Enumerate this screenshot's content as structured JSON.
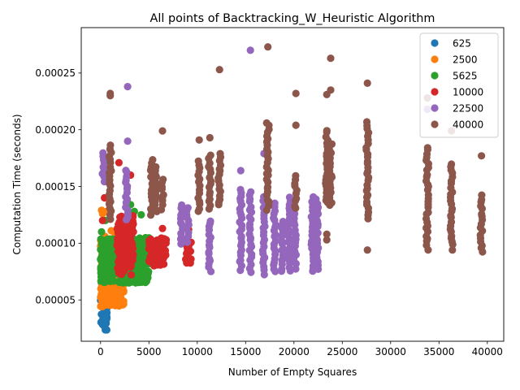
{
  "chart_data": {
    "type": "scatter",
    "title": "All points of Backtracking_W_Heuristic Algorithm",
    "xlabel": "Number of Empty Squares",
    "ylabel": "Computation Time (seconds)",
    "xlim": [
      -2000,
      41700
    ],
    "ylim": [
      1.36e-05,
      0.00029
    ],
    "xticks": [
      0,
      5000,
      10000,
      15000,
      20000,
      25000,
      30000,
      35000,
      40000
    ],
    "xtick_labels": [
      "0",
      "5000",
      "10000",
      "15000",
      "20000",
      "25000",
      "30000",
      "35000",
      "40000"
    ],
    "yticks": [
      5e-05,
      0.0001,
      0.00015,
      0.0002,
      0.00025
    ],
    "ytick_labels": [
      "0.00005",
      "0.00010",
      "0.00015",
      "0.00020",
      "0.00025"
    ],
    "grid": false,
    "legend_position": "top-right",
    "series": [
      {
        "name": "625",
        "color": "#1f77b4",
        "clusters": [
          {
            "x": [
              0,
              700
            ],
            "y": [
              2.2e-05,
              5.2e-05
            ]
          }
        ],
        "points": [
          {
            "x": 80,
            "y": 6.5e-05
          },
          {
            "x": 150,
            "y": 6.2e-05
          },
          {
            "x": 400,
            "y": 5.8e-05
          }
        ]
      },
      {
        "name": "2500",
        "color": "#ff7f0e",
        "clusters": [
          {
            "x": [
              0,
              2400
            ],
            "y": [
              4.4e-05,
              0.000108
            ]
          }
        ],
        "points": [
          {
            "x": 100,
            "y": 0.000129
          },
          {
            "x": 200,
            "y": 0.000126
          },
          {
            "x": 900,
            "y": 0.000137
          },
          {
            "x": 600,
            "y": 0.000128
          },
          {
            "x": 1100,
            "y": 0.000111
          }
        ]
      },
      {
        "name": "5625",
        "color": "#2ca02c",
        "clusters": [
          {
            "x": [
              0,
              5000
            ],
            "y": [
              6.5e-05,
              0.000105
            ]
          }
        ],
        "points": [
          {
            "x": 100,
            "y": 0.00011
          },
          {
            "x": 3100,
            "y": 0.000134
          },
          {
            "x": 3500,
            "y": 0.000128
          },
          {
            "x": 4200,
            "y": 0.000125
          },
          {
            "x": 2300,
            "y": 0.000113
          },
          {
            "x": 500,
            "y": 0.00012
          }
        ]
      },
      {
        "name": "10000",
        "color": "#d62728",
        "clusters": [
          {
            "x": [
              1700,
              3400
            ],
            "y": [
              7.2e-05,
              0.000125
            ]
          },
          {
            "x": [
              5000,
              6800
            ],
            "y": [
              8e-05,
              0.000105
            ]
          },
          {
            "x": [
              8800,
              9400
            ],
            "y": [
              8.2e-05,
              0.000103
            ]
          }
        ],
        "points": [
          {
            "x": 300,
            "y": 0.00016
          },
          {
            "x": 400,
            "y": 0.00014
          },
          {
            "x": 200,
            "y": 0.00012
          },
          {
            "x": 1900,
            "y": 0.000171
          },
          {
            "x": 3100,
            "y": 0.00016
          },
          {
            "x": 5200,
            "y": 0.000164
          },
          {
            "x": 6400,
            "y": 0.000113
          },
          {
            "x": 9100,
            "y": 0.000112
          }
        ]
      },
      {
        "name": "22500",
        "color": "#9467bd",
        "columns": [
          {
            "x": 300,
            "y": [
              0.000155,
              0.00018
            ]
          },
          {
            "x": 2700,
            "y": [
              0.00012,
              0.000165
            ]
          },
          {
            "x": 8400,
            "y": [
              0.0001,
              0.000134
            ]
          },
          {
            "x": 9000,
            "y": [
              0.0001,
              0.000132
            ]
          },
          {
            "x": 11300,
            "y": [
              7.5e-05,
              0.00012
            ]
          },
          {
            "x": 14500,
            "y": [
              7.7e-05,
              0.000148
            ]
          },
          {
            "x": 15500,
            "y": [
              7.5e-05,
              0.000145
            ]
          },
          {
            "x": 16900,
            "y": [
              7.3e-05,
              0.00014
            ]
          },
          {
            "x": 18000,
            "y": [
              7.5e-05,
              0.000135
            ]
          },
          {
            "x": 18800,
            "y": [
              7.5e-05,
              0.00012
            ]
          },
          {
            "x": 19500,
            "y": [
              7.6e-05,
              0.00014
            ]
          },
          {
            "x": 20100,
            "y": [
              7.8e-05,
              0.000125
            ]
          },
          {
            "x": 21900,
            "y": [
              7.5e-05,
              0.00014
            ]
          },
          {
            "x": 22400,
            "y": [
              7.8e-05,
              0.000138
            ]
          }
        ],
        "points": [
          {
            "x": 2800,
            "y": 0.000238
          },
          {
            "x": 2800,
            "y": 0.00019
          },
          {
            "x": 15500,
            "y": 0.00027
          },
          {
            "x": 16900,
            "y": 0.000179
          },
          {
            "x": 14500,
            "y": 0.000164
          },
          {
            "x": 33800,
            "y": 0.000218
          }
        ]
      },
      {
        "name": "40000",
        "color": "#8c564b",
        "columns": [
          {
            "x": 1000,
            "y": [
              0.000122,
              0.000186
            ]
          },
          {
            "x": 5300,
            "y": [
              0.000125,
              0.000174
            ]
          },
          {
            "x": 5700,
            "y": [
              0.000128,
              0.000168
            ]
          },
          {
            "x": 6400,
            "y": [
              0.00013,
              0.000157
            ]
          },
          {
            "x": 10200,
            "y": [
              0.000128,
              0.000172
            ]
          },
          {
            "x": 11300,
            "y": [
              0.00013,
              0.000177
            ]
          },
          {
            "x": 12300,
            "y": [
              0.000133,
              0.000178
            ]
          },
          {
            "x": 17300,
            "y": [
              0.00013,
              0.000206
            ]
          },
          {
            "x": 20200,
            "y": [
              0.00013,
              0.00016
            ]
          },
          {
            "x": 23400,
            "y": [
              0.000135,
              0.0002
            ]
          },
          {
            "x": 23800,
            "y": [
              0.000133,
              0.000188
            ]
          },
          {
            "x": 27600,
            "y": [
              0.000122,
              0.000206
            ]
          },
          {
            "x": 33800,
            "y": [
              9.5e-05,
              0.000185
            ]
          },
          {
            "x": 36300,
            "y": [
              9.5e-05,
              0.00017
            ]
          },
          {
            "x": 39400,
            "y": [
              9.2e-05,
              0.000142
            ]
          }
        ],
        "points": [
          {
            "x": 1000,
            "y": 0.000232
          },
          {
            "x": 1000,
            "y": 0.00023
          },
          {
            "x": 6400,
            "y": 0.000199
          },
          {
            "x": 10200,
            "y": 0.000191
          },
          {
            "x": 11300,
            "y": 0.000193
          },
          {
            "x": 12300,
            "y": 0.000253
          },
          {
            "x": 17300,
            "y": 0.000273
          },
          {
            "x": 20200,
            "y": 0.000232
          },
          {
            "x": 20200,
            "y": 0.000204
          },
          {
            "x": 23400,
            "y": 0.000231
          },
          {
            "x": 23800,
            "y": 0.000263
          },
          {
            "x": 23800,
            "y": 0.000235
          },
          {
            "x": 23400,
            "y": 0.000108
          },
          {
            "x": 23400,
            "y": 0.000103
          },
          {
            "x": 27600,
            "y": 0.000241
          },
          {
            "x": 27600,
            "y": 9.4e-05
          },
          {
            "x": 33800,
            "y": 0.000228
          },
          {
            "x": 36300,
            "y": 0.000199
          },
          {
            "x": 39400,
            "y": 0.000177
          }
        ]
      }
    ]
  }
}
